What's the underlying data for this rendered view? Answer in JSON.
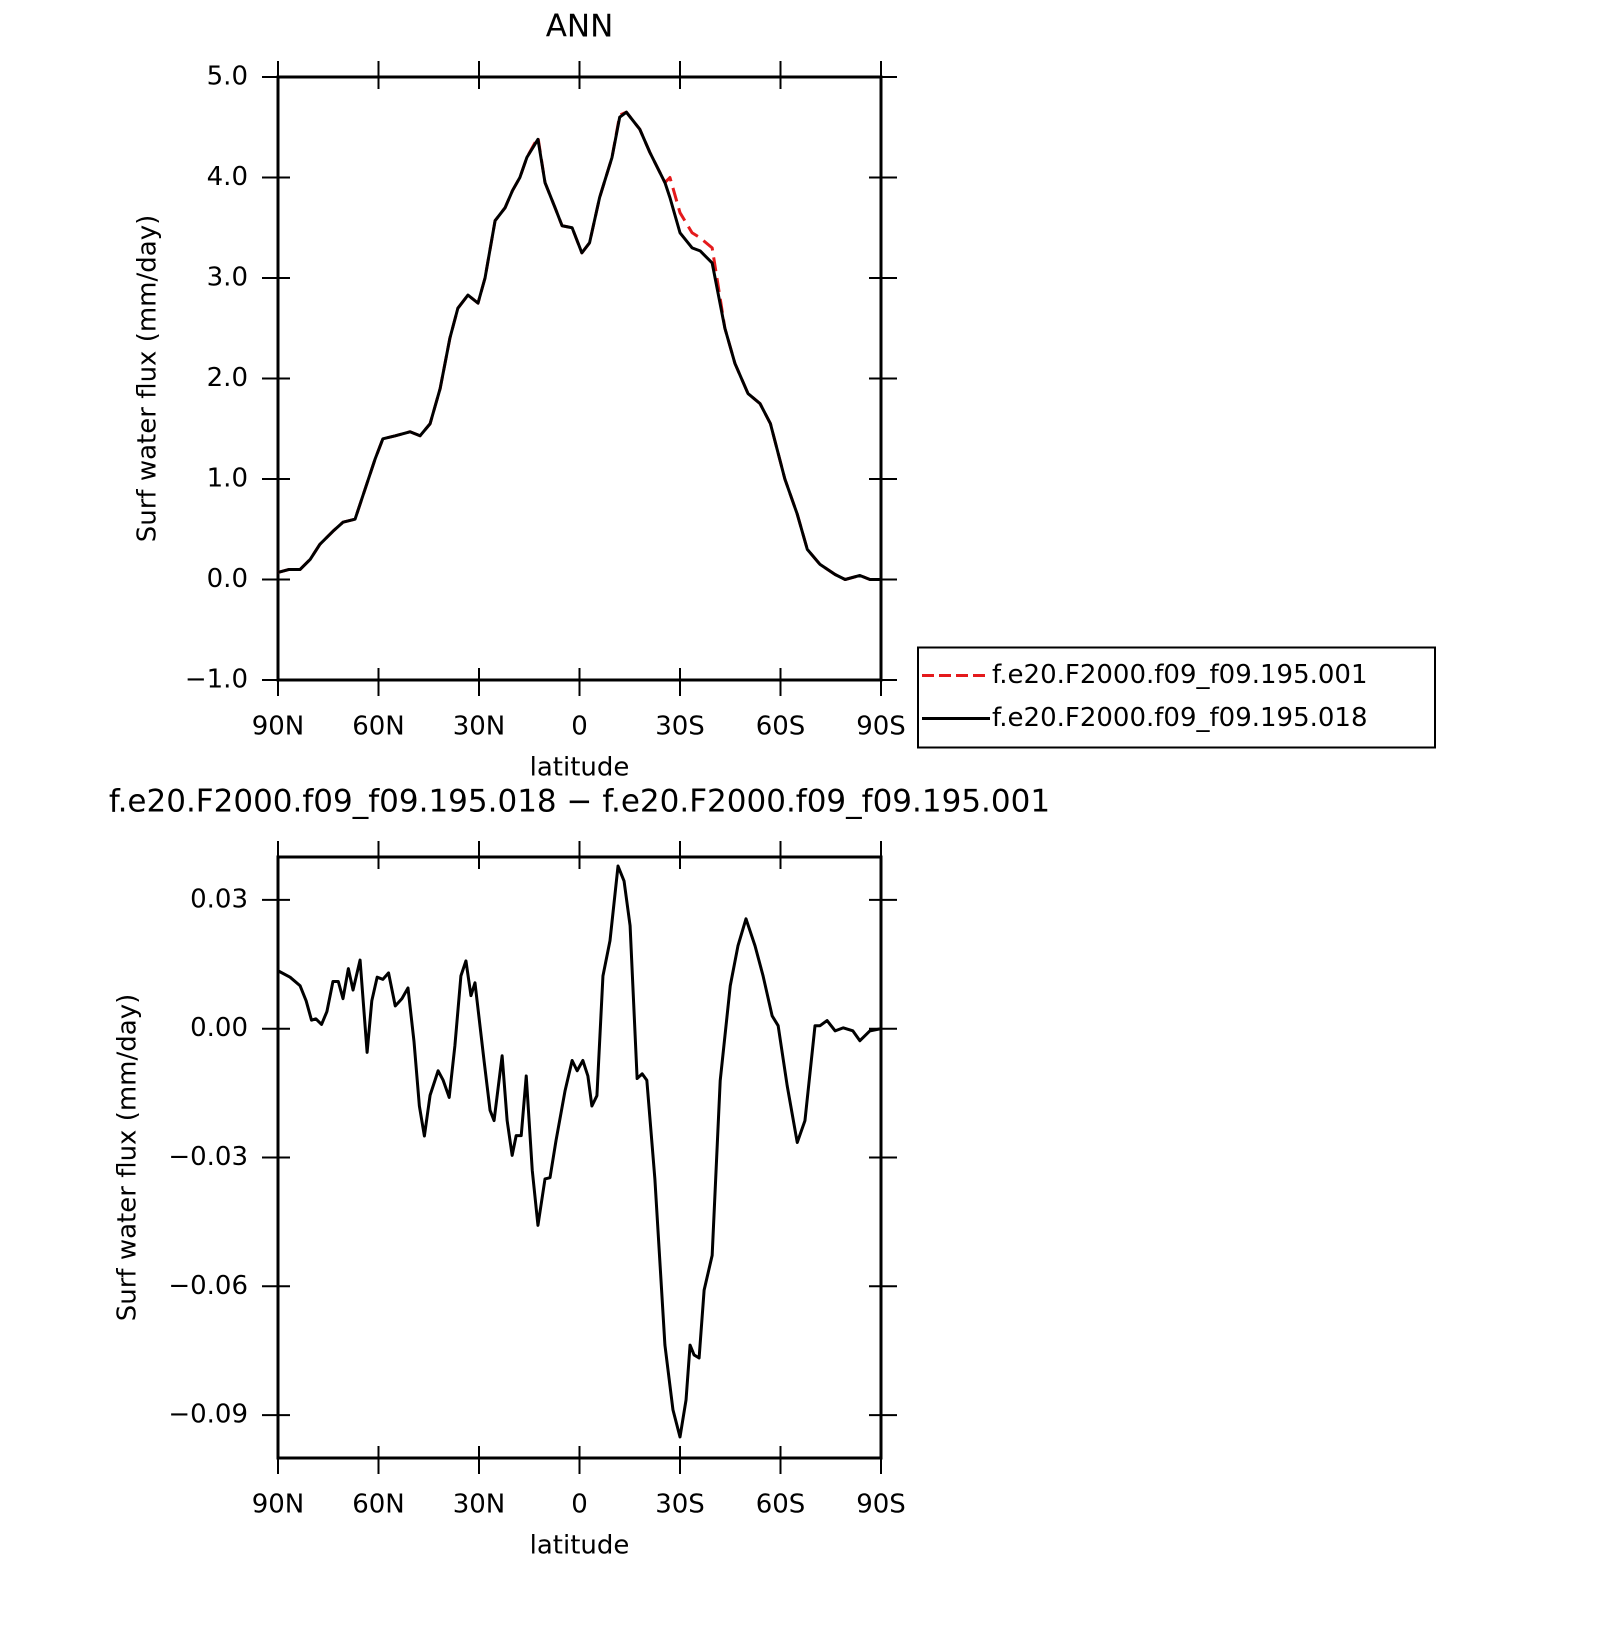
{
  "chart_data": [
    {
      "type": "line",
      "title": "ANN",
      "x_label": "latitude",
      "y_label": "Surf water flux (mm/day)",
      "x": [
        90,
        86.7,
        83.4,
        80.4,
        77.5,
        73.6,
        70.6,
        67,
        64,
        61,
        58.7,
        55,
        50.6,
        47.6,
        44.6,
        41.6,
        38.7,
        36.3,
        33.3,
        30.3,
        28.2,
        25.2,
        22.2,
        20,
        17.8,
        15.7,
        12.4,
        10.3,
        7.3,
        5.2,
        2.2,
        -0.7,
        -3,
        -6,
        -9.7,
        -12,
        -14,
        -18,
        -21,
        -25.5,
        -27,
        -30,
        -33.6,
        -36,
        -39.6,
        -43.4,
        -46.4,
        -50.3,
        -53.9,
        -57,
        -61.3,
        -65,
        -68,
        -71.8,
        -76.3,
        -79.3,
        -83.7,
        -86.7,
        -90
      ],
      "series": [
        {
          "name": "f.e20.F2000.f09_f09.195.001",
          "color": "#e41a1c",
          "line_style": "dashed",
          "values": [
            0.07,
            0.1,
            0.1,
            0.2,
            0.35,
            0.48,
            0.57,
            0.6,
            0.9,
            1.2,
            1.4,
            1.43,
            1.47,
            1.43,
            1.55,
            1.9,
            2.4,
            2.7,
            2.83,
            2.75,
            3.0,
            3.57,
            3.7,
            3.87,
            4.0,
            4.2,
            4.4,
            3.95,
            3.7,
            3.52,
            3.5,
            3.25,
            3.35,
            3.8,
            4.2,
            4.62,
            4.65,
            4.48,
            4.25,
            3.95,
            4.0,
            3.65,
            3.45,
            3.4,
            3.3,
            2.5,
            2.15,
            1.85,
            1.75,
            1.55,
            1.0,
            0.65,
            0.3,
            0.15,
            0.05,
            0.0,
            0.04,
            0.0,
            0.0
          ]
        },
        {
          "name": "f.e20.F2000.f09_f09.195.018",
          "color": "#000000",
          "line_style": "solid",
          "values": [
            0.07,
            0.1,
            0.1,
            0.2,
            0.35,
            0.48,
            0.57,
            0.6,
            0.9,
            1.2,
            1.4,
            1.43,
            1.47,
            1.43,
            1.55,
            1.9,
            2.4,
            2.7,
            2.83,
            2.75,
            3.0,
            3.57,
            3.7,
            3.87,
            4.0,
            4.2,
            4.38,
            3.95,
            3.7,
            3.52,
            3.5,
            3.25,
            3.35,
            3.8,
            4.2,
            4.6,
            4.65,
            4.48,
            4.25,
            3.95,
            3.8,
            3.45,
            3.3,
            3.27,
            3.15,
            2.5,
            2.15,
            1.85,
            1.75,
            1.55,
            1.0,
            0.65,
            0.3,
            0.15,
            0.05,
            0.0,
            0.04,
            0.0,
            0.0
          ]
        }
      ],
      "xlim": [
        90,
        -90
      ],
      "xticks": [
        {
          "value": 90,
          "label": "90N"
        },
        {
          "value": 60,
          "label": "60N"
        },
        {
          "value": 30,
          "label": "30N"
        },
        0,
        {
          "value": -30,
          "label": "30S"
        },
        {
          "value": -60,
          "label": "60S"
        },
        {
          "value": -90,
          "label": "90S"
        }
      ],
      "ylim": [
        -1,
        5
      ],
      "yticks": [
        {
          "value": -1,
          "label": "−1.0"
        },
        {
          "value": 0,
          "label": "0.0"
        },
        {
          "value": 1,
          "label": "1.0"
        },
        {
          "value": 2,
          "label": "2.0"
        },
        {
          "value": 3,
          "label": "3.0"
        },
        {
          "value": 4,
          "label": "4.0"
        },
        {
          "value": 5,
          "label": "5.0"
        }
      ],
      "grid": false,
      "legend": "right"
    },
    {
      "type": "line",
      "title": "f.e20.F2000.f09_f09.195.018 − f.e20.F2000.f09_f09.195.001",
      "x_label": "latitude",
      "y_label": "Surf water flux (mm/day)",
      "x": [
        90,
        86.4,
        83.4,
        81.6,
        80,
        78.7,
        77,
        75.4,
        73.6,
        72,
        70.6,
        69,
        67.6,
        65.5,
        63.4,
        62,
        60.4,
        58.7,
        57,
        55,
        53,
        51.2,
        49.4,
        47.8,
        46.3,
        44.6,
        42.2,
        40.7,
        38.9,
        37.2,
        35.4,
        33.9,
        32.4,
        31.2,
        28.5,
        26.7,
        25.5,
        23.1,
        21.6,
        20.1,
        18.9,
        17.4,
        15.9,
        14.1,
        12.4,
        10.3,
        8.8,
        7,
        4.3,
        2.2,
        0.7,
        -1,
        -2.5,
        -3.7,
        -5.2,
        -7,
        -9.1,
        -11.5,
        -13.3,
        -15.1,
        -17.2,
        -18.7,
        -20.1,
        -22.5,
        -25.5,
        -27.9,
        -30,
        -31.8,
        -33,
        -34.2,
        -35.7,
        -37.2,
        -39.6,
        -42,
        -45,
        -47.3,
        -49.7,
        -52.4,
        -54.8,
        -57.5,
        -59.3,
        -62,
        -65,
        -67.3,
        -70.3,
        -71.8,
        -73.9,
        -76.3,
        -78.7,
        -81.6,
        -83.7,
        -86.7,
        -90
      ],
      "values": [
        0.0135,
        0.012,
        0.01,
        0.0065,
        0.002,
        0.0023,
        0.001,
        0.004,
        0.011,
        0.011,
        0.007,
        0.014,
        0.009,
        0.016,
        -0.0055,
        0.0065,
        0.012,
        0.0115,
        0.013,
        0.0053,
        0.007,
        0.0095,
        -0.003,
        -0.018,
        -0.025,
        -0.0155,
        -0.0098,
        -0.012,
        -0.016,
        -0.004,
        0.0123,
        0.0158,
        0.0077,
        0.0107,
        -0.0074,
        -0.019,
        -0.0214,
        -0.0063,
        -0.0214,
        -0.0295,
        -0.0249,
        -0.0249,
        -0.011,
        -0.033,
        -0.0458,
        -0.035,
        -0.0347,
        -0.026,
        -0.0144,
        -0.0074,
        -0.0098,
        -0.0074,
        -0.011,
        -0.018,
        -0.0156,
        0.0123,
        0.0205,
        0.0379,
        0.0344,
        0.024,
        -0.0116,
        -0.0105,
        -0.012,
        -0.035,
        -0.0737,
        -0.0888,
        -0.0951,
        -0.0865,
        -0.0737,
        -0.076,
        -0.0767,
        -0.0609,
        -0.0528,
        -0.0121,
        0.01,
        0.0193,
        0.0256,
        0.0193,
        0.0123,
        0.003,
        0.0007,
        -0.0133,
        -0.0265,
        -0.0214,
        0.0007,
        0.0007,
        0.0019,
        -0.0005,
        0.0002,
        -0.0005,
        -0.0028,
        -0.0005,
        0
      ],
      "color": "#000000",
      "line_style": "solid",
      "xlim": [
        90,
        -90
      ],
      "xticks": [
        {
          "value": 90,
          "label": "90N"
        },
        {
          "value": 60,
          "label": "60N"
        },
        {
          "value": 30,
          "label": "30N"
        },
        0,
        {
          "value": -30,
          "label": "30S"
        },
        {
          "value": -60,
          "label": "60S"
        },
        {
          "value": -90,
          "label": "90S"
        }
      ],
      "ylim": [
        -0.1,
        0.04
      ],
      "yticks": [
        {
          "value": -0.09,
          "label": "−0.09"
        },
        {
          "value": -0.06,
          "label": "−0.06"
        },
        {
          "value": -0.03,
          "label": "−0.03"
        },
        {
          "value": 0,
          "label": "0.00"
        },
        {
          "value": 0.03,
          "label": "0.03"
        }
      ],
      "grid": false
    }
  ]
}
